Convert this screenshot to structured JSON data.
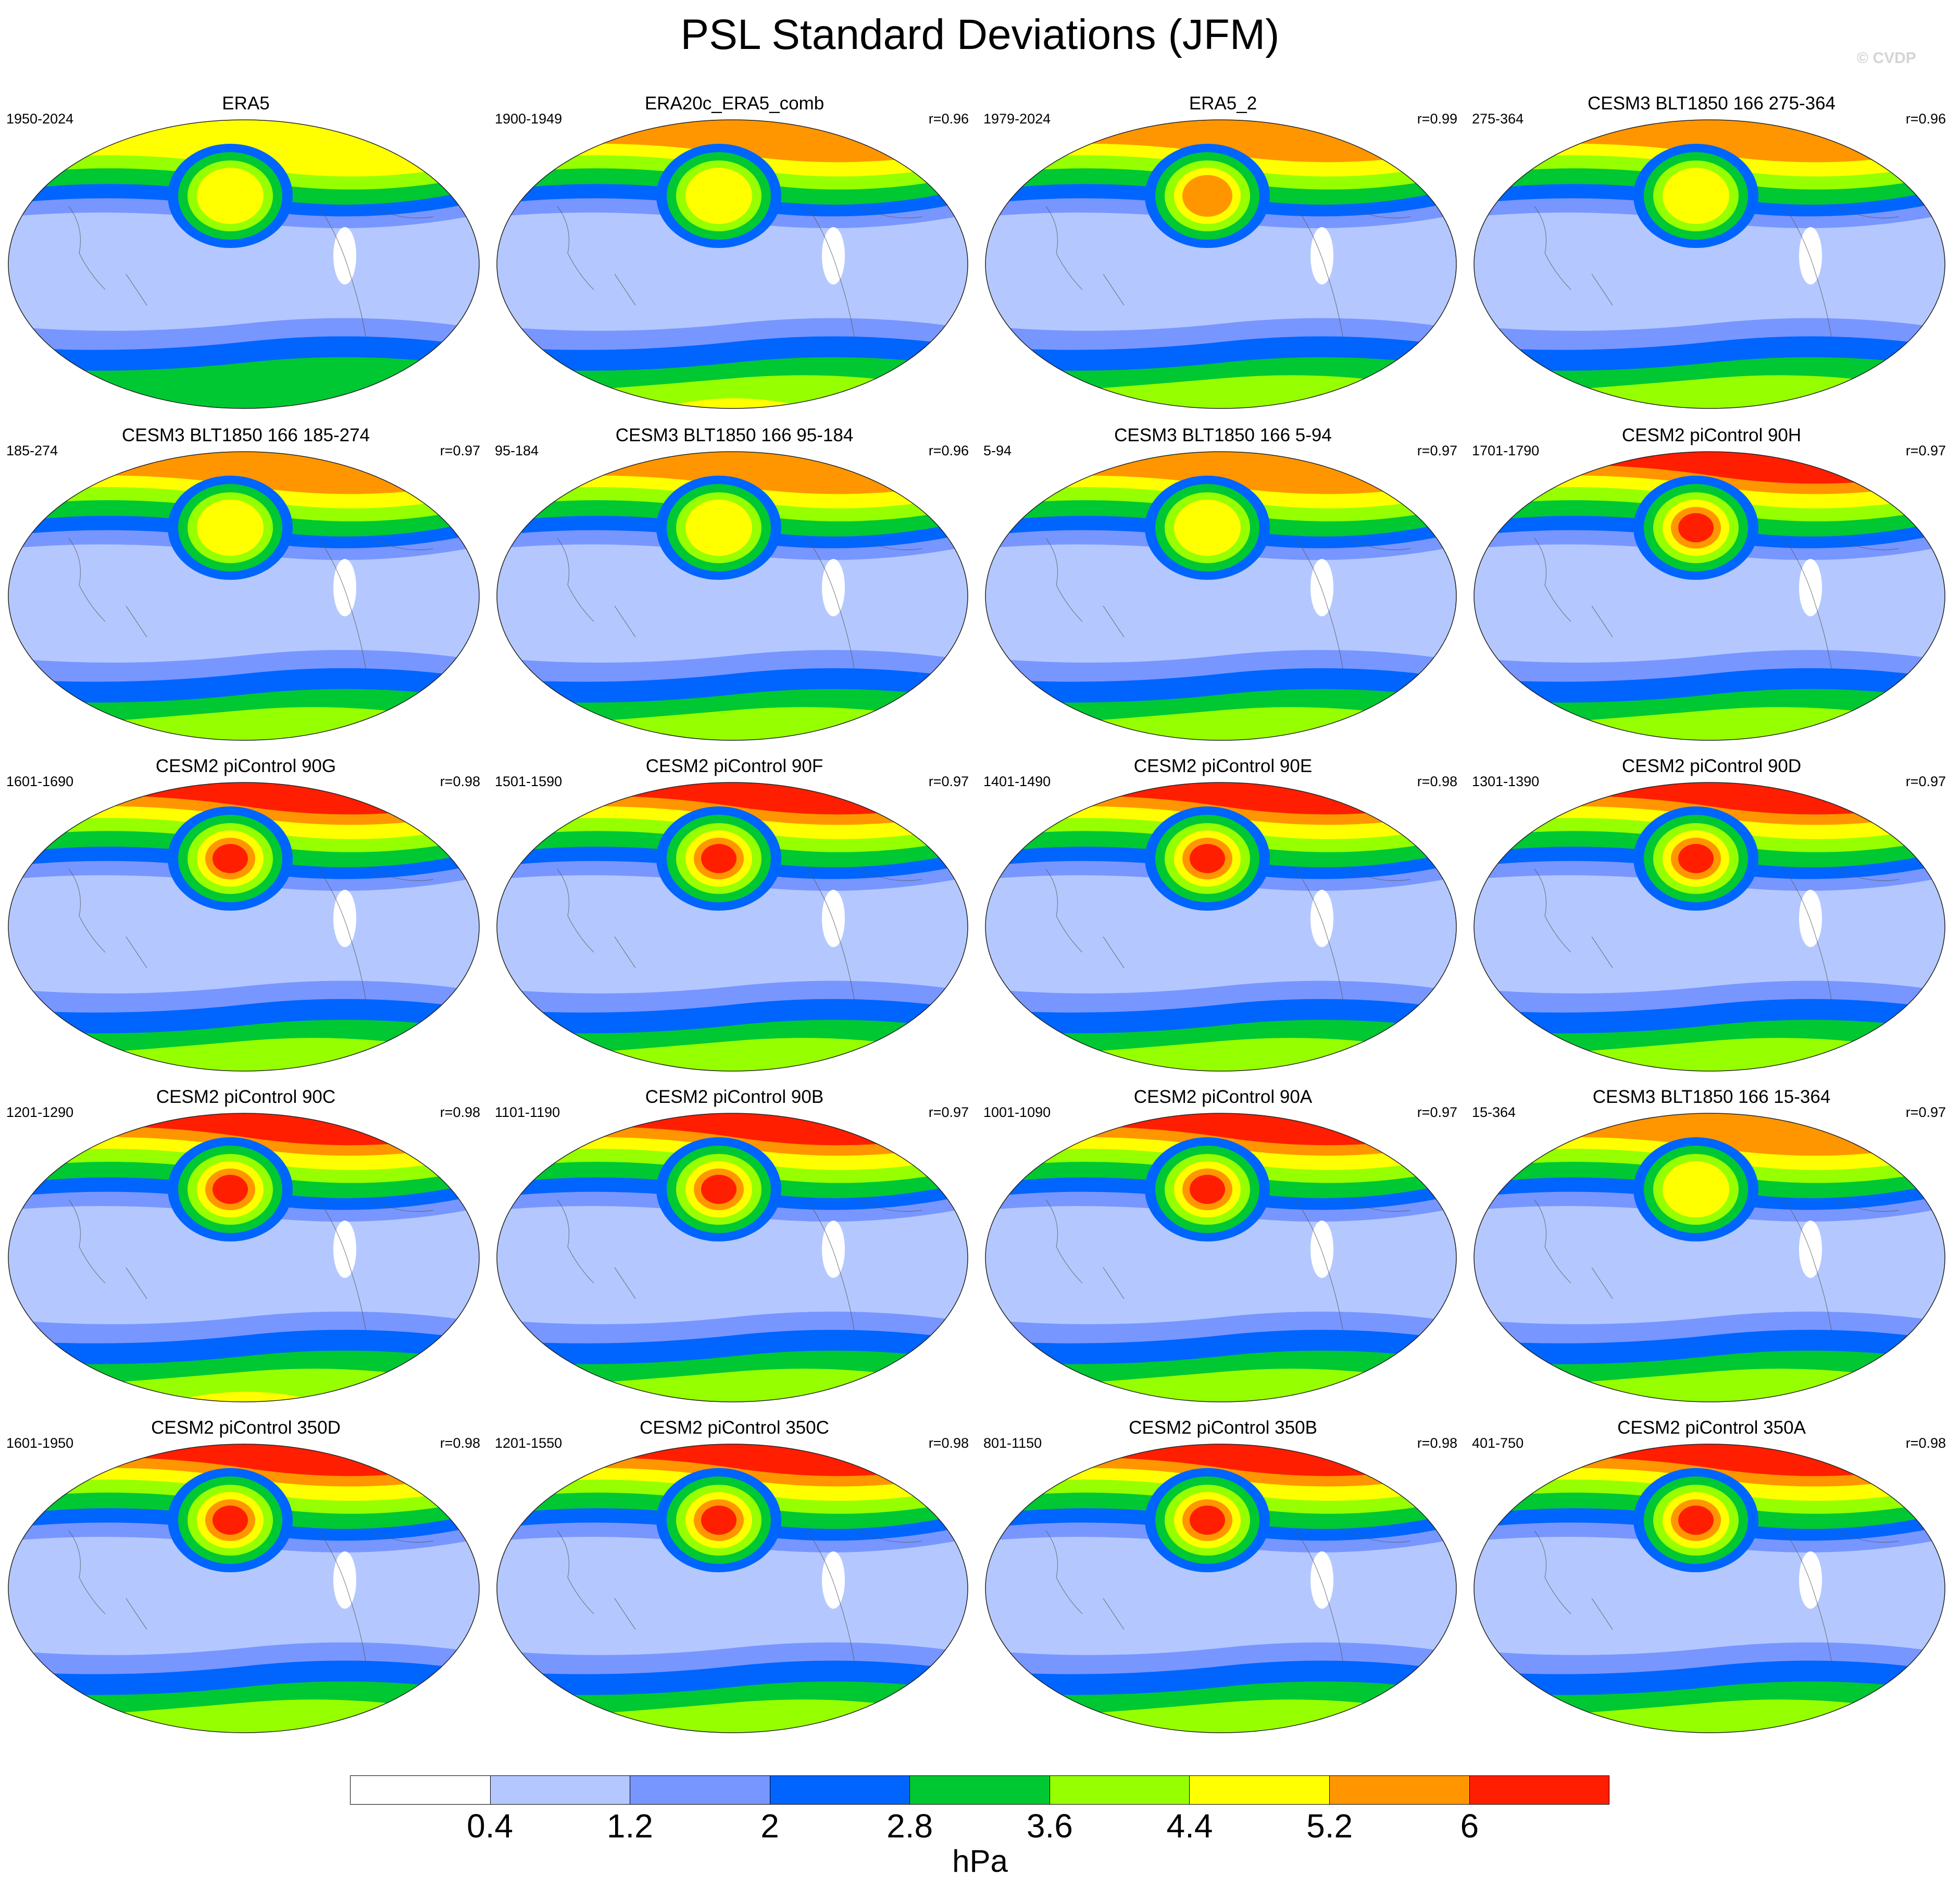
{
  "title": "PSL Standard Deviations (JFM)",
  "credit": "© CVDP",
  "units": "hPa",
  "colorbar": {
    "colors": [
      "#ffffff",
      "#b4c8ff",
      "#7896ff",
      "#0064ff",
      "#00c832",
      "#96ff00",
      "#ffff00",
      "#ff9600",
      "#ff1e00"
    ],
    "tick_labels": [
      "0.4",
      "1.2",
      "2",
      "2.8",
      "3.6",
      "4.4",
      "5.2",
      "6"
    ]
  },
  "panels": [
    {
      "title": "ERA5",
      "years": "1950-2024",
      "corr": "",
      "nh": 4,
      "pac": 5,
      "sh": 3
    },
    {
      "title": "ERA20c_ERA5_comb",
      "years": "1900-1949",
      "corr": "r=0.96",
      "nh": 5,
      "pac": 5,
      "sh": 5
    },
    {
      "title": "ERA5_2",
      "years": "1979-2024",
      "corr": "r=0.99",
      "nh": 5,
      "pac": 6,
      "sh": 4
    },
    {
      "title": "CESM3 BLT1850 166 275-364",
      "years": "275-364",
      "corr": "r=0.96",
      "nh": 5,
      "pac": 5,
      "sh": 4
    },
    {
      "title": "CESM3 BLT1850 166 185-274",
      "years": "185-274",
      "corr": "r=0.97",
      "nh": 5,
      "pac": 5,
      "sh": 4
    },
    {
      "title": "CESM3 BLT1850 166 95-184",
      "years": "95-184",
      "corr": "r=0.96",
      "nh": 5,
      "pac": 5,
      "sh": 4
    },
    {
      "title": "CESM3 BLT1850 166 5-94",
      "years": "5-94",
      "corr": "r=0.97",
      "nh": 5,
      "pac": 5,
      "sh": 4
    },
    {
      "title": "CESM2 piControl 90H",
      "years": "1701-1790",
      "corr": "r=0.97",
      "nh": 6,
      "pac": 7,
      "sh": 4
    },
    {
      "title": "CESM2 piControl 90G",
      "years": "1601-1690",
      "corr": "r=0.98",
      "nh": 6,
      "pac": 7,
      "sh": 4
    },
    {
      "title": "CESM2 piControl 90F",
      "years": "1501-1590",
      "corr": "r=0.97",
      "nh": 6,
      "pac": 7,
      "sh": 4
    },
    {
      "title": "CESM2 piControl 90E",
      "years": "1401-1490",
      "corr": "r=0.98",
      "nh": 6,
      "pac": 7,
      "sh": 4
    },
    {
      "title": "CESM2 piControl 90D",
      "years": "1301-1390",
      "corr": "r=0.97",
      "nh": 6,
      "pac": 7,
      "sh": 4
    },
    {
      "title": "CESM2 piControl 90C",
      "years": "1201-1290",
      "corr": "r=0.98",
      "nh": 6,
      "pac": 7,
      "sh": 5
    },
    {
      "title": "CESM2 piControl 90B",
      "years": "1101-1190",
      "corr": "r=0.97",
      "nh": 6,
      "pac": 7,
      "sh": 4
    },
    {
      "title": "CESM2 piControl 90A",
      "years": "1001-1090",
      "corr": "r=0.97",
      "nh": 6,
      "pac": 7,
      "sh": 4
    },
    {
      "title": "CESM3 BLT1850 166 15-364",
      "years": "15-364",
      "corr": "r=0.97",
      "nh": 5,
      "pac": 5,
      "sh": 4
    },
    {
      "title": "CESM2 piControl 350D",
      "years": "1601-1950",
      "corr": "r=0.98",
      "nh": 6,
      "pac": 7,
      "sh": 4
    },
    {
      "title": "CESM2 piControl 350C",
      "years": "1201-1550",
      "corr": "r=0.98",
      "nh": 6,
      "pac": 7,
      "sh": 4
    },
    {
      "title": "CESM2 piControl 350B",
      "years": "801-1150",
      "corr": "r=0.98",
      "nh": 6,
      "pac": 7,
      "sh": 4
    },
    {
      "title": "CESM2 piControl 350A",
      "years": "401-750",
      "corr": "r=0.98",
      "nh": 6,
      "pac": 7,
      "sh": 4
    }
  ]
}
